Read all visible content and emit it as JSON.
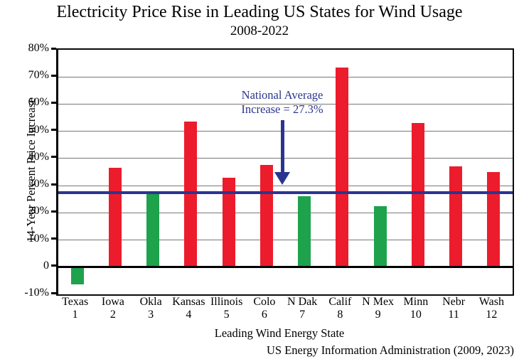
{
  "chart_data": {
    "type": "bar",
    "title": "Electricity Price Rise in Leading US States for Wind Usage",
    "subtitle": "2008-2022",
    "xlabel": "Leading Wind Energy State",
    "ylabel": "14-Year Percent Price Increase",
    "source": "US Energy Information Administration (2009, 2023)",
    "ylim": [
      -10,
      80
    ],
    "yticks": [
      {
        "value": 80,
        "label": "80%"
      },
      {
        "value": 70,
        "label": "70%"
      },
      {
        "value": 60,
        "label": "60%"
      },
      {
        "value": 50,
        "label": "50%"
      },
      {
        "value": 40,
        "label": "40%"
      },
      {
        "value": 30,
        "label": "30%"
      },
      {
        "value": 20,
        "label": "20%"
      },
      {
        "value": 10,
        "label": "10%"
      },
      {
        "value": 0,
        "label": "0"
      },
      {
        "value": -10,
        "label": "-10%"
      }
    ],
    "gridlines": [
      70,
      60,
      50,
      40,
      30,
      20,
      10
    ],
    "categories": [
      "Texas",
      "Iowa",
      "Okla",
      "Kansas",
      "Illinois",
      "Colo",
      "N Dak",
      "Calif",
      "N Mex",
      "Minn",
      "Nebr",
      "Wash"
    ],
    "ranks": [
      "1",
      "2",
      "3",
      "4",
      "5",
      "6",
      "7",
      "8",
      "9",
      "10",
      "11",
      "12"
    ],
    "values": [
      -6,
      36.5,
      27,
      53.5,
      33,
      37.5,
      26,
      73.5,
      22.5,
      53,
      37,
      35
    ],
    "bar_color_keys": [
      "green",
      "red",
      "green",
      "red",
      "red",
      "red",
      "green",
      "red",
      "green",
      "red",
      "red",
      "red"
    ],
    "national_average": {
      "value": 27.3,
      "label_line1": "National Average",
      "label_line2": "Increase = 27.3%"
    },
    "colors": {
      "red": "#EC1C2C",
      "green": "#1EA24C",
      "navy": "#2B3590",
      "gridline": "#777777",
      "axis": "#000000"
    },
    "legend_position": "none",
    "grid": "horizontal"
  }
}
